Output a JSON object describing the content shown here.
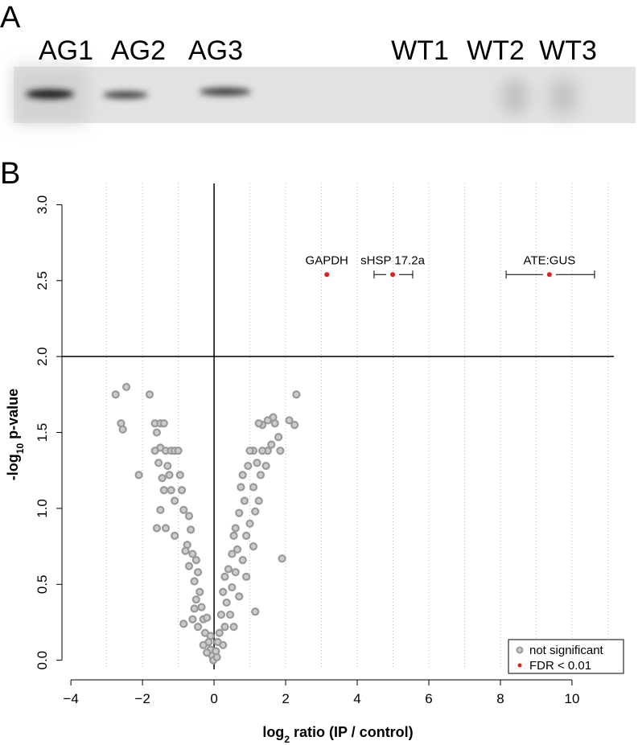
{
  "panel_a": {
    "label": "A",
    "lanes": [
      "AG1",
      "AG2",
      "AG3",
      "WT1",
      "WT2",
      "WT3"
    ]
  },
  "chart_data": {
    "type": "scatter",
    "panel_label": "B",
    "x_label": {
      "pre": "log",
      "sub": "2",
      "post": " ratio (IP / control)"
    },
    "y_label": {
      "pre": "-log",
      "sub": "10",
      "post": " p-value"
    },
    "xlim": [
      -4.25,
      11.17
    ],
    "ylim": [
      -0.06,
      3.14
    ],
    "xticks": [
      {
        "value": -4,
        "label": "−4"
      },
      {
        "value": -2,
        "label": "−2"
      },
      0,
      2,
      4,
      6,
      8,
      10
    ],
    "yticks": [
      {
        "value": 0,
        "label": "0.0"
      },
      {
        "value": 0.5,
        "label": "0.5"
      },
      {
        "value": 1,
        "label": "1.0"
      },
      {
        "value": 1.5,
        "label": "1.5"
      },
      {
        "value": 2,
        "label": "2.0"
      },
      {
        "value": 2.5,
        "label": "2.5"
      },
      {
        "value": 3,
        "label": "3.0"
      }
    ],
    "xgrid": [
      -3,
      -2,
      -1,
      1,
      2,
      3,
      4,
      5,
      6,
      7,
      8,
      9,
      10,
      11
    ],
    "hline": 2,
    "vline": 0,
    "legend": "bottom-right",
    "series": [
      {
        "name": "not significant",
        "color": "#999999",
        "x": [
          -2.75,
          -2.45,
          -2.6,
          -2.55,
          -2.1,
          -1.8,
          -1.65,
          -1.5,
          -1.4,
          -1.6,
          -1.5,
          -1.65,
          -1.35,
          -1.2,
          -1.1,
          -1.55,
          -1.3,
          -1.0,
          -1.45,
          -1.25,
          -0.95,
          -1.4,
          -1.2,
          -0.9,
          -1.1,
          -1.5,
          -0.85,
          -0.7,
          -1.35,
          -1.6,
          -1.1,
          -0.65,
          -0.75,
          -0.8,
          -0.6,
          -0.7,
          -0.5,
          -0.45,
          -0.55,
          -0.4,
          -0.5,
          -0.35,
          -0.55,
          -0.6,
          -0.3,
          -0.45,
          -0.2,
          -0.85,
          -0.25,
          -0.15,
          -0.3,
          -0.1,
          -0.05,
          -0.2,
          -0.1,
          -0.02,
          2.3,
          2.25,
          2.1,
          1.65,
          1.7,
          1.5,
          1.35,
          1.25,
          1.8,
          1.6,
          1.85,
          1.5,
          1.35,
          1.1,
          1.0,
          1.2,
          1.45,
          0.95,
          1.3,
          0.8,
          1.1,
          0.75,
          1.25,
          0.85,
          1.15,
          0.7,
          1.0,
          0.6,
          0.9,
          0.55,
          1.1,
          0.65,
          1.9,
          0.5,
          0.8,
          0.4,
          0.6,
          0.9,
          0.3,
          0.5,
          0.25,
          0.7,
          0.35,
          0.45,
          0.2,
          1.15,
          0.3,
          0.55,
          0.15,
          0.1,
          0.25,
          0.05,
          0.08
        ],
        "y": [
          1.75,
          1.8,
          1.56,
          1.52,
          1.22,
          1.75,
          1.56,
          1.56,
          1.56,
          1.5,
          1.4,
          1.38,
          1.38,
          1.38,
          1.38,
          1.3,
          1.28,
          1.38,
          1.2,
          1.22,
          1.22,
          1.12,
          1.12,
          1.12,
          1.05,
          0.99,
          0.99,
          0.95,
          0.87,
          0.87,
          0.82,
          0.86,
          0.76,
          0.72,
          0.7,
          0.62,
          0.66,
          0.58,
          0.52,
          0.45,
          0.4,
          0.35,
          0.34,
          0.27,
          0.27,
          0.22,
          0.28,
          0.24,
          0.18,
          0.12,
          0.1,
          0.07,
          0.03,
          0.05,
          0.16,
          0.0,
          1.75,
          1.55,
          1.58,
          1.6,
          1.56,
          1.58,
          1.55,
          1.56,
          1.47,
          1.42,
          1.38,
          1.38,
          1.38,
          1.38,
          1.38,
          1.3,
          1.28,
          1.28,
          1.22,
          1.22,
          1.14,
          1.14,
          1.05,
          1.05,
          0.98,
          0.97,
          0.9,
          0.87,
          0.82,
          0.82,
          0.75,
          0.73,
          0.67,
          0.7,
          0.66,
          0.6,
          0.58,
          0.55,
          0.55,
          0.48,
          0.45,
          0.42,
          0.38,
          0.3,
          0.3,
          0.32,
          0.22,
          0.22,
          0.18,
          0.12,
          0.1,
          0.06,
          0.02
        ]
      },
      {
        "name": "FDR < 0.01",
        "color": "#e0201b",
        "x": [
          3.15,
          4.99,
          9.37
        ],
        "y": [
          2.54,
          2.54,
          2.54
        ],
        "x_low": [
          null,
          4.47,
          8.16
        ],
        "x_high": [
          null,
          5.55,
          10.63
        ],
        "point_labels": [
          "GAPDH",
          "sHSP 17.2a",
          "ATE:GUS"
        ]
      }
    ]
  }
}
